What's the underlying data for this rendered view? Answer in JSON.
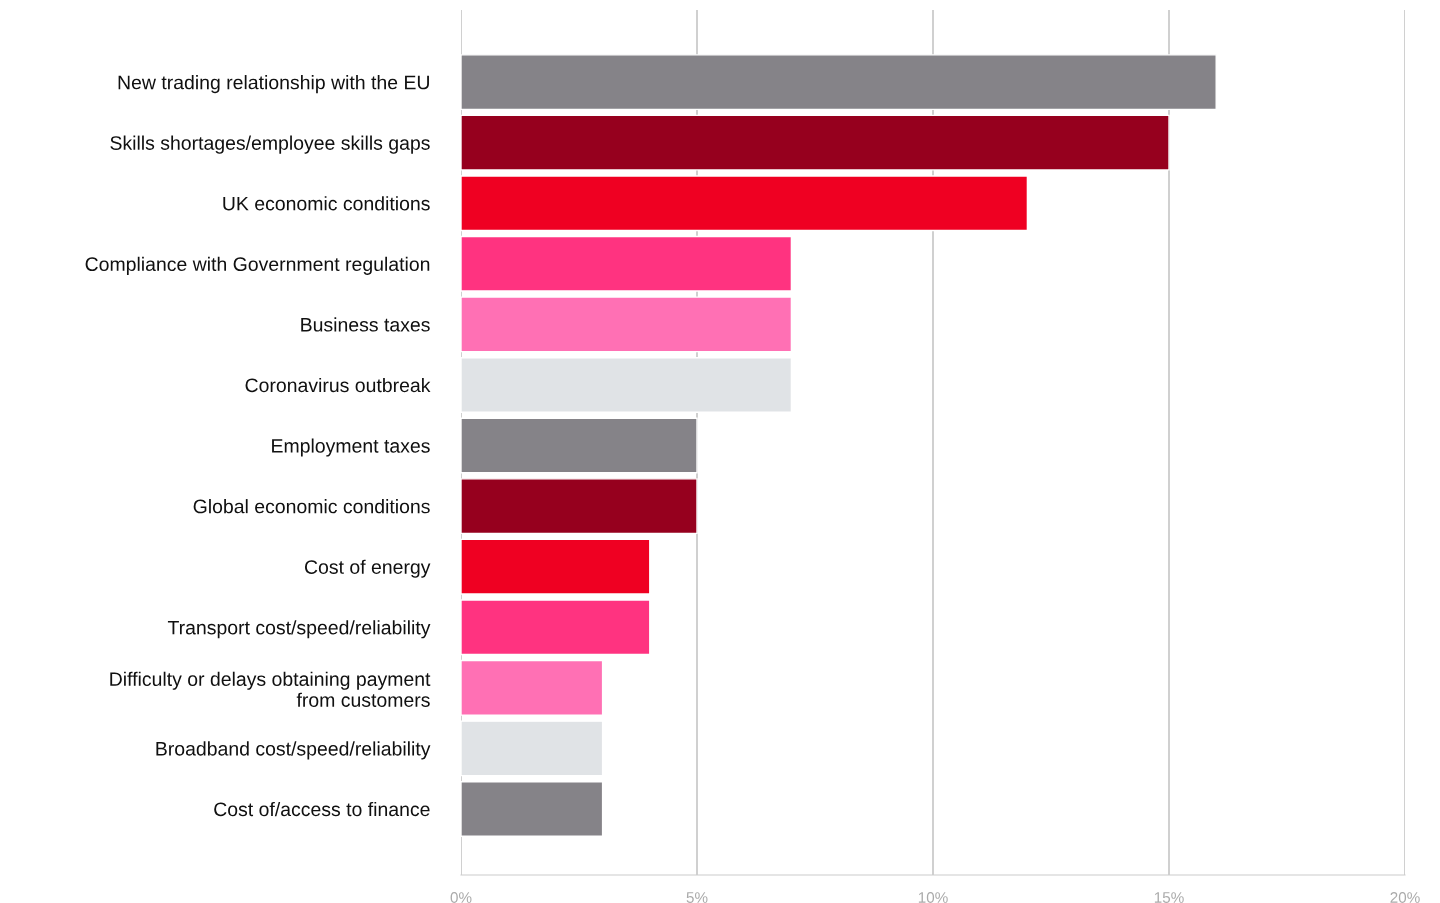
{
  "chart_data": {
    "type": "bar",
    "orientation": "horizontal",
    "categories": [
      "New trading relationship with the EU",
      "Skills shortages/employee skills gaps",
      "UK economic conditions",
      "Compliance with Government regulation",
      "Business taxes",
      "Coronavirus outbreak",
      "Employment taxes",
      "Global economic conditions",
      "Cost of energy",
      "Transport cost/speed/reliability",
      "Difficulty or delays obtaining payment\nfrom customers",
      "Broadband cost/speed/reliability",
      "Cost of/access to finance"
    ],
    "values": [
      16,
      15,
      12,
      7,
      7,
      7,
      5,
      5,
      4,
      4,
      3,
      3,
      3
    ],
    "colors": [
      "#858388",
      "#96001e",
      "#ef0022",
      "#ff3380",
      "#ff70b4",
      "#e0e3e6",
      "#858388",
      "#96001e",
      "#ef0022",
      "#ff3380",
      "#ff70b4",
      "#e0e3e6",
      "#858388"
    ],
    "xlim": [
      0,
      20
    ],
    "xticks": [
      {
        "value": 0,
        "label": "0%"
      },
      {
        "value": 5,
        "label": "5%"
      },
      {
        "value": 10,
        "label": "10%"
      },
      {
        "value": 15,
        "label": "15%"
      },
      {
        "value": 20,
        "label": "20%"
      }
    ],
    "grid": "x"
  }
}
